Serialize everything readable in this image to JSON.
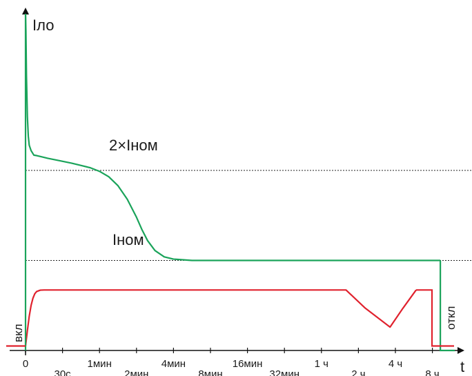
{
  "chart_data": {
    "type": "line",
    "title": "",
    "ylabel": "Iло",
    "xlabel": "t",
    "x_scale": "log2",
    "x_ticks": [
      {
        "label": "0",
        "row": "upper"
      },
      {
        "label": "30с",
        "row": "lower"
      },
      {
        "label": "1мин",
        "row": "upper"
      },
      {
        "label": "2мин",
        "row": "lower"
      },
      {
        "label": "4мин",
        "row": "upper"
      },
      {
        "label": "8мин",
        "row": "lower"
      },
      {
        "label": "16мин",
        "row": "upper"
      },
      {
        "label": "32мин",
        "row": "lower"
      },
      {
        "label": "1 ч",
        "row": "upper"
      },
      {
        "label": "2 ч",
        "row": "lower"
      },
      {
        "label": "4 ч",
        "row": "upper"
      },
      {
        "label": "8 ч",
        "row": "lower"
      }
    ],
    "reference_lines": [
      {
        "label": "2×Iном",
        "y": 2.0
      },
      {
        "label": "Iном",
        "y": 1.0
      }
    ],
    "state_labels": {
      "on": "вкл",
      "off": "откл"
    },
    "ylim": [
      0,
      3.74
    ],
    "series": [
      {
        "color": "#1aa35a",
        "x": [
          0.0,
          0.02,
          0.05,
          0.1,
          0.15,
          0.2,
          0.3,
          0.45,
          0.6,
          0.8,
          1.2,
          1.8,
          2.5,
          3.0,
          3.5,
          4.0,
          4.5,
          5.0,
          5.5,
          6.0,
          6.3,
          6.6,
          7.0,
          7.5,
          8.0,
          9.0,
          10.0,
          11.0,
          12.0,
          13.0,
          14.0,
          15.0,
          16.0,
          17.0,
          18.0,
          19.0,
          20.0,
          21.0,
          22.0,
          22.43
        ],
        "y": [
          3.74,
          3.55,
          3.05,
          2.6,
          2.38,
          2.28,
          2.22,
          2.17,
          2.165,
          2.155,
          2.135,
          2.11,
          2.08,
          2.055,
          2.03,
          1.99,
          1.93,
          1.83,
          1.68,
          1.48,
          1.34,
          1.22,
          1.11,
          1.04,
          1.015,
          1.0,
          1.0,
          1.0,
          1.0,
          1.0,
          1.0,
          1.0,
          1.0,
          1.0,
          1.0,
          1.0,
          1.0,
          1.0,
          1.0,
          1.0
        ]
      },
      {
        "color": "#e0212d",
        "x": [
          0.0,
          0.1,
          0.2,
          0.3,
          0.4,
          0.5,
          0.6,
          0.8,
          1.0,
          1.3,
          1.6,
          2.0,
          3.0,
          5.0,
          8.0,
          12.0,
          16.0,
          17.33,
          18.37,
          19.71,
          20.41,
          21.12
        ],
        "y": [
          0.05,
          0.22,
          0.38,
          0.5,
          0.58,
          0.63,
          0.655,
          0.67,
          0.672,
          0.672,
          0.672,
          0.672,
          0.672,
          0.672,
          0.672,
          0.672,
          0.672,
          0.672,
          0.47,
          0.26,
          0.47,
          0.672
        ]
      }
    ]
  }
}
